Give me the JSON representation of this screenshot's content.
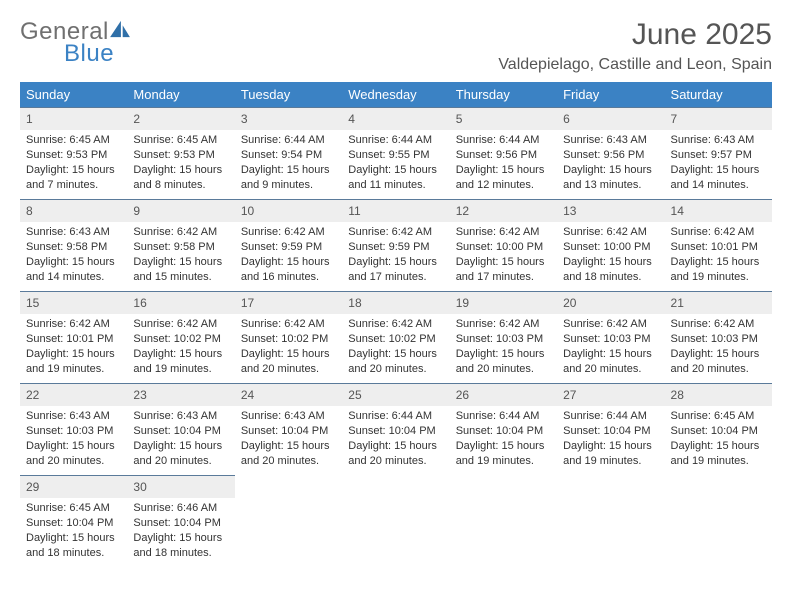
{
  "brand": {
    "part1": "General",
    "part2": "Blue",
    "icon_color": "#2f6fa8"
  },
  "header": {
    "month": "June 2025",
    "location": "Valdepielago, Castille and Leon, Spain"
  },
  "style": {
    "header_bg": "#3b82c4",
    "header_text": "#ffffff",
    "daynum_bg": "#eeeeee",
    "cell_border": "#5a7a9a",
    "body_text": "#333333",
    "title_text": "#555555",
    "month_fontsize": 30,
    "location_fontsize": 16,
    "th_fontsize": 13,
    "cell_fontsize": 11
  },
  "columns": [
    "Sunday",
    "Monday",
    "Tuesday",
    "Wednesday",
    "Thursday",
    "Friday",
    "Saturday"
  ],
  "weeks": [
    [
      {
        "n": "1",
        "sr": "6:45 AM",
        "ss": "9:53 PM",
        "dl": "15 hours and 7 minutes."
      },
      {
        "n": "2",
        "sr": "6:45 AM",
        "ss": "9:53 PM",
        "dl": "15 hours and 8 minutes."
      },
      {
        "n": "3",
        "sr": "6:44 AM",
        "ss": "9:54 PM",
        "dl": "15 hours and 9 minutes."
      },
      {
        "n": "4",
        "sr": "6:44 AM",
        "ss": "9:55 PM",
        "dl": "15 hours and 11 minutes."
      },
      {
        "n": "5",
        "sr": "6:44 AM",
        "ss": "9:56 PM",
        "dl": "15 hours and 12 minutes."
      },
      {
        "n": "6",
        "sr": "6:43 AM",
        "ss": "9:56 PM",
        "dl": "15 hours and 13 minutes."
      },
      {
        "n": "7",
        "sr": "6:43 AM",
        "ss": "9:57 PM",
        "dl": "15 hours and 14 minutes."
      }
    ],
    [
      {
        "n": "8",
        "sr": "6:43 AM",
        "ss": "9:58 PM",
        "dl": "15 hours and 14 minutes."
      },
      {
        "n": "9",
        "sr": "6:42 AM",
        "ss": "9:58 PM",
        "dl": "15 hours and 15 minutes."
      },
      {
        "n": "10",
        "sr": "6:42 AM",
        "ss": "9:59 PM",
        "dl": "15 hours and 16 minutes."
      },
      {
        "n": "11",
        "sr": "6:42 AM",
        "ss": "9:59 PM",
        "dl": "15 hours and 17 minutes."
      },
      {
        "n": "12",
        "sr": "6:42 AM",
        "ss": "10:00 PM",
        "dl": "15 hours and 17 minutes."
      },
      {
        "n": "13",
        "sr": "6:42 AM",
        "ss": "10:00 PM",
        "dl": "15 hours and 18 minutes."
      },
      {
        "n": "14",
        "sr": "6:42 AM",
        "ss": "10:01 PM",
        "dl": "15 hours and 19 minutes."
      }
    ],
    [
      {
        "n": "15",
        "sr": "6:42 AM",
        "ss": "10:01 PM",
        "dl": "15 hours and 19 minutes."
      },
      {
        "n": "16",
        "sr": "6:42 AM",
        "ss": "10:02 PM",
        "dl": "15 hours and 19 minutes."
      },
      {
        "n": "17",
        "sr": "6:42 AM",
        "ss": "10:02 PM",
        "dl": "15 hours and 20 minutes."
      },
      {
        "n": "18",
        "sr": "6:42 AM",
        "ss": "10:02 PM",
        "dl": "15 hours and 20 minutes."
      },
      {
        "n": "19",
        "sr": "6:42 AM",
        "ss": "10:03 PM",
        "dl": "15 hours and 20 minutes."
      },
      {
        "n": "20",
        "sr": "6:42 AM",
        "ss": "10:03 PM",
        "dl": "15 hours and 20 minutes."
      },
      {
        "n": "21",
        "sr": "6:42 AM",
        "ss": "10:03 PM",
        "dl": "15 hours and 20 minutes."
      }
    ],
    [
      {
        "n": "22",
        "sr": "6:43 AM",
        "ss": "10:03 PM",
        "dl": "15 hours and 20 minutes."
      },
      {
        "n": "23",
        "sr": "6:43 AM",
        "ss": "10:04 PM",
        "dl": "15 hours and 20 minutes."
      },
      {
        "n": "24",
        "sr": "6:43 AM",
        "ss": "10:04 PM",
        "dl": "15 hours and 20 minutes."
      },
      {
        "n": "25",
        "sr": "6:44 AM",
        "ss": "10:04 PM",
        "dl": "15 hours and 20 minutes."
      },
      {
        "n": "26",
        "sr": "6:44 AM",
        "ss": "10:04 PM",
        "dl": "15 hours and 19 minutes."
      },
      {
        "n": "27",
        "sr": "6:44 AM",
        "ss": "10:04 PM",
        "dl": "15 hours and 19 minutes."
      },
      {
        "n": "28",
        "sr": "6:45 AM",
        "ss": "10:04 PM",
        "dl": "15 hours and 19 minutes."
      }
    ],
    [
      {
        "n": "29",
        "sr": "6:45 AM",
        "ss": "10:04 PM",
        "dl": "15 hours and 18 minutes."
      },
      {
        "n": "30",
        "sr": "6:46 AM",
        "ss": "10:04 PM",
        "dl": "15 hours and 18 minutes."
      },
      null,
      null,
      null,
      null,
      null
    ]
  ],
  "labels": {
    "sunrise": "Sunrise:",
    "sunset": "Sunset:",
    "daylight": "Daylight:"
  }
}
